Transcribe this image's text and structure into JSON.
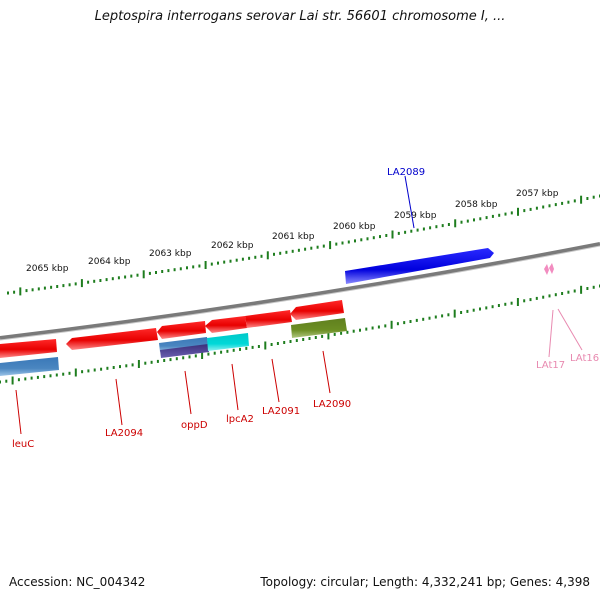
{
  "title": "Leptospira interrogans serovar Lai str. 56601 chromosome I, ...",
  "footer": {
    "accession": "Accession: NC_004342",
    "summary": "Topology: circular; Length: 4,332,241 bp; Genes: 4,398"
  },
  "colors": {
    "backbone": "#8a8a8a",
    "tick": "#1e7d1e",
    "label_red": "#cc0000",
    "label_blue": "#0000cc",
    "label_pink": "#e88ab0"
  },
  "scale_labels": [
    "2065 kbp",
    "2064 kbp",
    "2063 kbp",
    "2062 kbp",
    "2061 kbp",
    "2060 kbp",
    "2059 kbp",
    "2058 kbp",
    "2057 kbp"
  ],
  "genes": [
    {
      "name": "LA2089",
      "color": "#0000ee",
      "strand": "forward"
    },
    {
      "name": "leuC",
      "color": "#ee0000",
      "strand": "reverse"
    },
    {
      "name": "LA2094",
      "color": "#ee0000",
      "strand": "reverse"
    },
    {
      "name": "oppD",
      "color": "#ee0000",
      "strand": "reverse"
    },
    {
      "name": "lpcA2",
      "color": "#ee0000",
      "strand": "reverse"
    },
    {
      "name": "LA2091",
      "color": "#ee0000",
      "strand": "reverse"
    },
    {
      "name": "LA2090",
      "color": "#ee0000",
      "strand": "reverse"
    },
    {
      "name": "LAt17",
      "color": "#f28cc0",
      "strand": "reverse"
    },
    {
      "name": "LAt16",
      "color": "#f28cc0",
      "strand": "reverse"
    }
  ],
  "features": [
    {
      "name": "leuC-steelblue",
      "color": "#4a86c0"
    },
    {
      "name": "oppD-steelblue",
      "color": "#4a86c0"
    },
    {
      "name": "oppD-darkslate",
      "color": "#483d8b"
    },
    {
      "name": "lpcA2-cyan",
      "color": "#00cfd0"
    },
    {
      "name": "LA2090-olive",
      "color": "#6b8e23"
    }
  ]
}
